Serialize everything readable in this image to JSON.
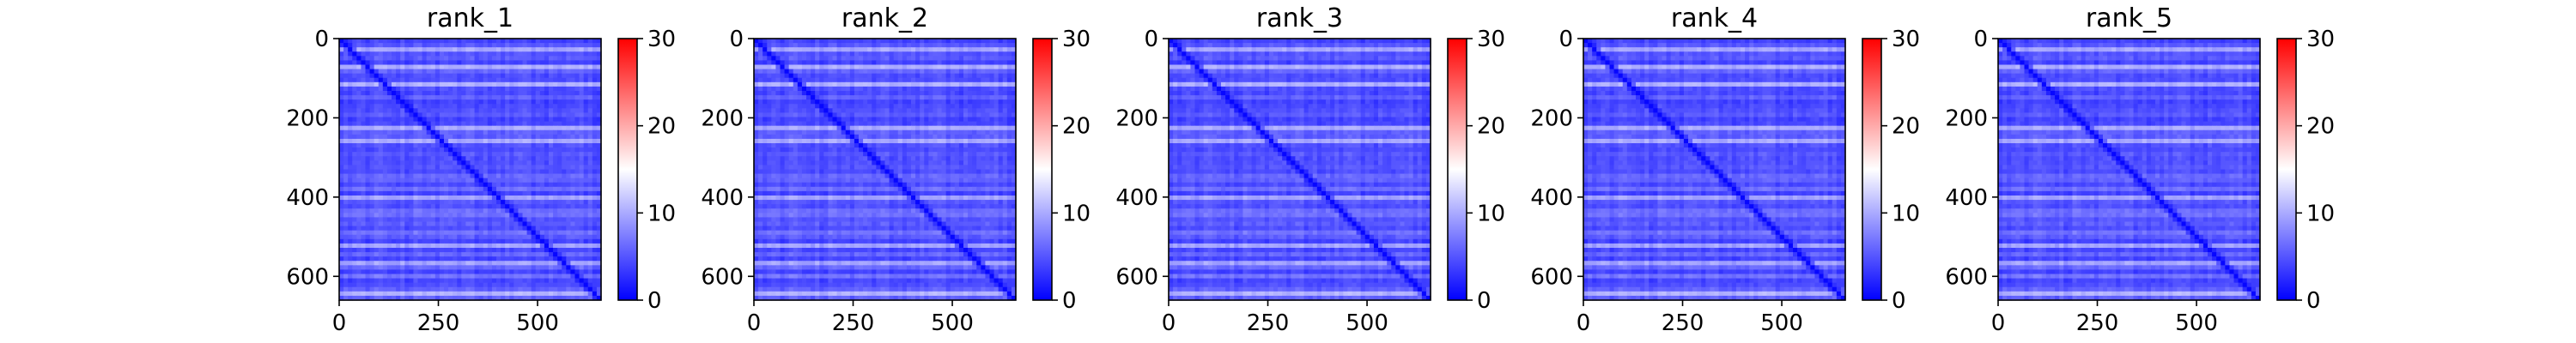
{
  "chart_data": [
    {
      "type": "heatmap",
      "title": "rank_1",
      "x_ticks": [
        0,
        250,
        500
      ],
      "y_ticks": [
        0,
        200,
        400,
        600
      ],
      "xlim": [
        0,
        660
      ],
      "ylim": [
        660,
        0
      ],
      "colorbar": {
        "min": 0,
        "max": 30,
        "ticks": [
          0,
          10,
          20,
          30
        ],
        "colormap": [
          "#0000ff",
          "#ffffff",
          "#ff0000"
        ]
      },
      "value_range_observed": [
        0,
        12
      ]
    },
    {
      "type": "heatmap",
      "title": "rank_2",
      "x_ticks": [
        0,
        250,
        500
      ],
      "y_ticks": [
        0,
        200,
        400,
        600
      ],
      "xlim": [
        0,
        660
      ],
      "ylim": [
        660,
        0
      ],
      "colorbar": {
        "min": 0,
        "max": 30,
        "ticks": [
          0,
          10,
          20,
          30
        ],
        "colormap": [
          "#0000ff",
          "#ffffff",
          "#ff0000"
        ]
      },
      "value_range_observed": [
        0,
        12
      ]
    },
    {
      "type": "heatmap",
      "title": "rank_3",
      "x_ticks": [
        0,
        250,
        500
      ],
      "y_ticks": [
        0,
        200,
        400,
        600
      ],
      "xlim": [
        0,
        660
      ],
      "ylim": [
        660,
        0
      ],
      "colorbar": {
        "min": 0,
        "max": 30,
        "ticks": [
          0,
          10,
          20,
          30
        ],
        "colormap": [
          "#0000ff",
          "#ffffff",
          "#ff0000"
        ]
      },
      "value_range_observed": [
        0,
        12
      ]
    },
    {
      "type": "heatmap",
      "title": "rank_4",
      "x_ticks": [
        0,
        250,
        500
      ],
      "y_ticks": [
        0,
        200,
        400,
        600
      ],
      "xlim": [
        0,
        660
      ],
      "ylim": [
        660,
        0
      ],
      "colorbar": {
        "min": 0,
        "max": 30,
        "ticks": [
          0,
          10,
          20,
          30
        ],
        "colormap": [
          "#0000ff",
          "#ffffff",
          "#ff0000"
        ]
      },
      "value_range_observed": [
        0,
        12
      ]
    },
    {
      "type": "heatmap",
      "title": "rank_5",
      "x_ticks": [
        0,
        250,
        500
      ],
      "y_ticks": [
        0,
        200,
        400,
        600
      ],
      "xlim": [
        0,
        660
      ],
      "ylim": [
        660,
        0
      ],
      "colorbar": {
        "min": 0,
        "max": 30,
        "ticks": [
          0,
          10,
          20,
          30
        ],
        "colormap": [
          "#0000ff",
          "#ffffff",
          "#ff0000"
        ]
      },
      "value_range_observed": [
        0,
        12
      ]
    }
  ]
}
